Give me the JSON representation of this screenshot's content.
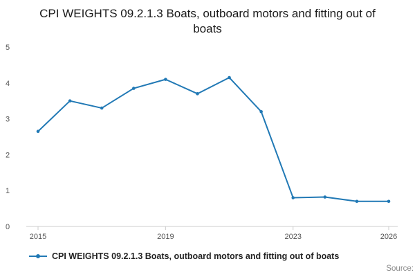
{
  "chart_data": {
    "type": "line",
    "title": "CPI WEIGHTS 09.2.1.3 Boats, outboard motors and fitting out of boats",
    "legend": "CPI WEIGHTS 09.2.1.3 Boats, outboard motors and fitting out of boats",
    "x": [
      2015,
      2016,
      2017,
      2018,
      2019,
      2020,
      2021,
      2022,
      2023,
      2024,
      2025,
      2026
    ],
    "values": [
      2.65,
      3.5,
      3.3,
      3.85,
      4.1,
      3.7,
      4.15,
      3.2,
      0.8,
      0.82,
      0.7,
      0.7
    ],
    "x_tick_labels": [
      2015,
      2019,
      2023,
      2026
    ],
    "yticks": [
      0,
      1,
      2,
      3,
      4,
      5
    ],
    "ylim": [
      0,
      5
    ],
    "xlabel": "",
    "ylabel": "",
    "line_color": "#2179b5",
    "grid": false,
    "legend_position": "bottom-left"
  },
  "source_label": "Source:"
}
